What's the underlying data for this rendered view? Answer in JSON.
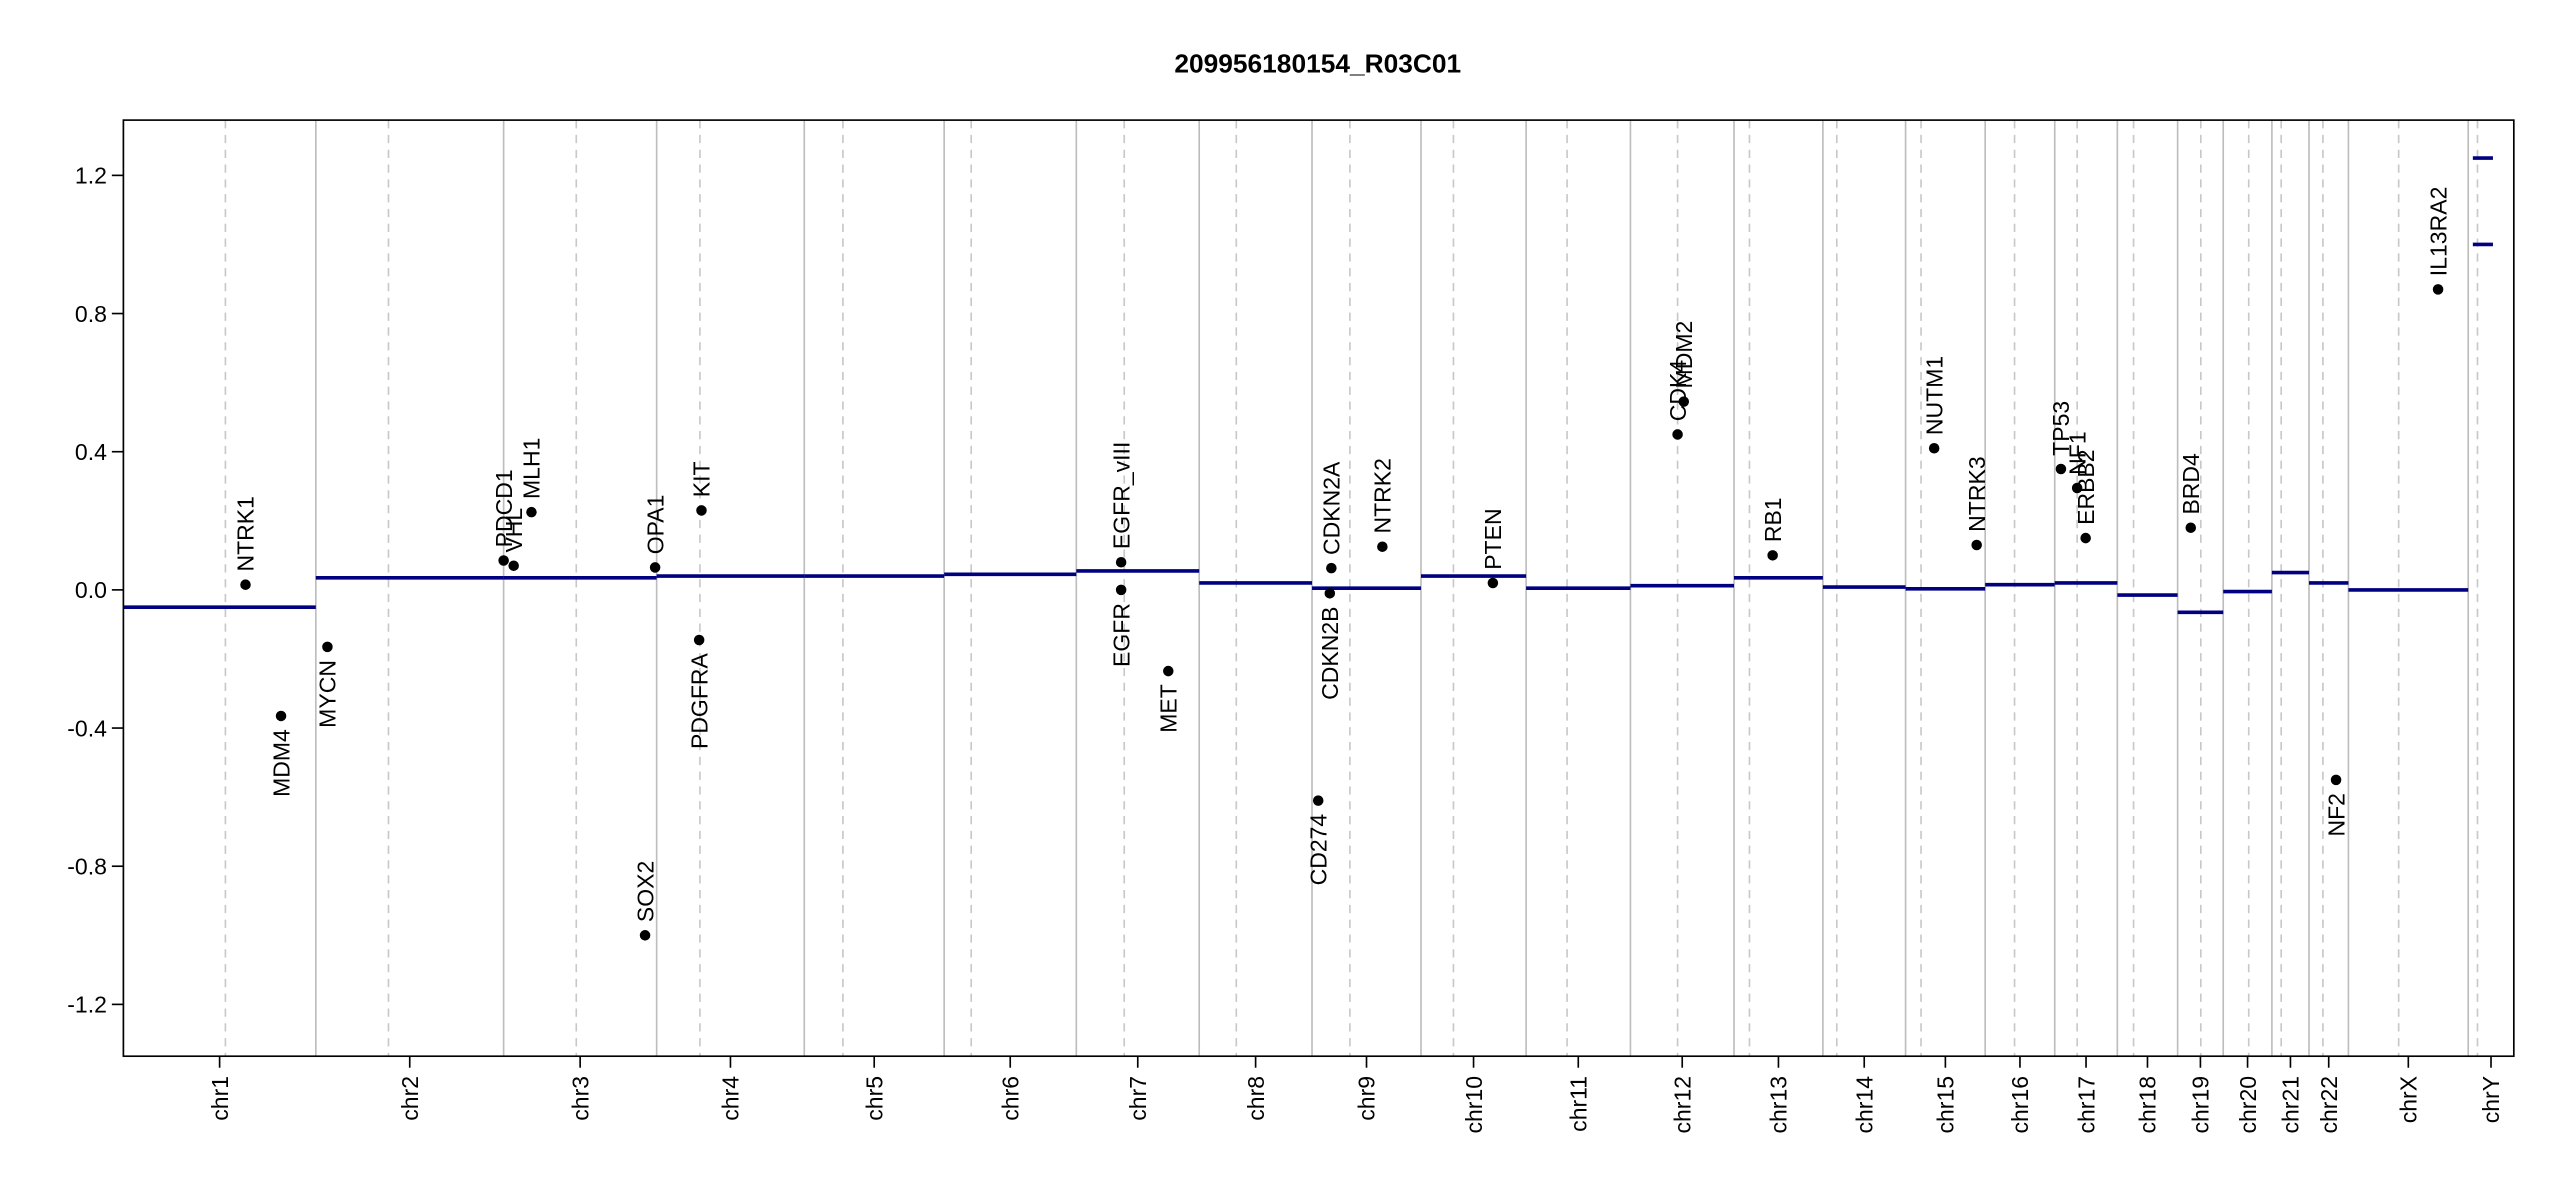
{
  "chart_data": {
    "type": "scatter",
    "title": "209956180154_R03C01",
    "xlim": [
      0,
      3093
    ],
    "ylim": [
      -1.35,
      1.36
    ],
    "yticks": [
      1.2,
      0.8,
      0.4,
      {
        "value": 0,
        "label": "0.0"
      },
      -0.4,
      -0.8,
      -1.2
    ],
    "chromosomes": {
      "names": [
        "chr1",
        "chr2",
        "chr3",
        "chr4",
        "chr5",
        "chr6",
        "chr7",
        "chr8",
        "chr9",
        "chr10",
        "chr11",
        "chr12",
        "chr13",
        "chr14",
        "chr15",
        "chr16",
        "chr17",
        "chr18",
        "chr19",
        "chr20",
        "chr21",
        "chr22",
        "chrX",
        "chrY"
      ],
      "boundaries": [
        0,
        249,
        492,
        690,
        881,
        1062,
        1233,
        1392,
        1538,
        1679,
        1815,
        1950,
        2084,
        2199,
        2306,
        2409,
        2499,
        2580,
        2658,
        2717,
        2780,
        2828,
        2879,
        3034,
        3093
      ],
      "centromeres": [
        132,
        343,
        586,
        746,
        931,
        1097,
        1295,
        1440,
        1587,
        1721,
        1868,
        2011,
        2104,
        2217,
        2326,
        2447,
        2528,
        2601,
        2688,
        2750,
        2792,
        2846,
        2944,
        3046
      ]
    },
    "segments": {
      "color": "#000080",
      "x0": [
        0,
        249,
        492,
        690,
        881,
        1062,
        1233,
        1392,
        1538,
        1679,
        1815,
        1950,
        2084,
        2199,
        2306,
        2409,
        2499,
        2580,
        2658,
        2717,
        2780,
        2828,
        2879,
        3040,
        3040
      ],
      "x1": [
        249,
        492,
        690,
        881,
        1062,
        1233,
        1392,
        1538,
        1679,
        1815,
        1950,
        2084,
        2199,
        2306,
        2409,
        2499,
        2580,
        2658,
        2717,
        2780,
        2828,
        2879,
        3034,
        3066,
        3066
      ],
      "values": [
        -0.05,
        0.035,
        0.035,
        0.04,
        0.04,
        0.045,
        0.055,
        0.02,
        0.005,
        0.04,
        0.005,
        0.012,
        0.035,
        0.008,
        0.003,
        0.015,
        0.02,
        -0.015,
        -0.065,
        -0.005,
        0.05,
        0.02,
        0.0,
        1.25,
        1.0
      ]
    },
    "genes": {
      "color": "#000000",
      "names": [
        "NTRK1",
        "MDM4",
        "MYCN",
        "PDCD1",
        "VHL",
        "MLH1",
        "SOX2",
        "OPA1",
        "KIT",
        "PDGFRA",
        "EGFR_vIII",
        "EGFR",
        "MET",
        "CD274",
        "CDKN2A",
        "CDKN2B",
        "NTRK2",
        "PTEN",
        "CDK4",
        "MDM2",
        "RB1",
        "NUTM1",
        "NTRK3",
        "TP53",
        "NF1",
        "ERBB2",
        "BRD4",
        "NF2",
        "IL13RA2"
      ],
      "x": [
        158,
        204,
        264,
        492,
        505,
        528,
        675,
        688,
        748,
        745,
        1291,
        1291,
        1352,
        1546,
        1563,
        1561,
        1629,
        1772,
        2011,
        2019,
        2134,
        2343,
        2398,
        2507,
        2528,
        2539,
        2675,
        2863,
        2995
      ],
      "values": [
        0.015,
        -0.365,
        -0.165,
        0.085,
        0.07,
        0.225,
        -1.0,
        0.065,
        0.23,
        -0.145,
        0.08,
        0.0,
        -0.235,
        -0.61,
        0.063,
        -0.01,
        0.125,
        0.02,
        0.45,
        0.545,
        0.1,
        0.41,
        0.13,
        0.35,
        0.295,
        0.15,
        0.18,
        -0.55,
        0.87
      ],
      "label_side": [
        "above",
        "below",
        "below",
        "above",
        "above",
        "above",
        "above",
        "above",
        "above",
        "below",
        "above",
        "below",
        "below",
        "below",
        "above",
        "below",
        "above",
        "above",
        "above",
        "above",
        "above",
        "above",
        "above",
        "above",
        "above",
        "above",
        "above",
        "below",
        "above"
      ]
    }
  }
}
